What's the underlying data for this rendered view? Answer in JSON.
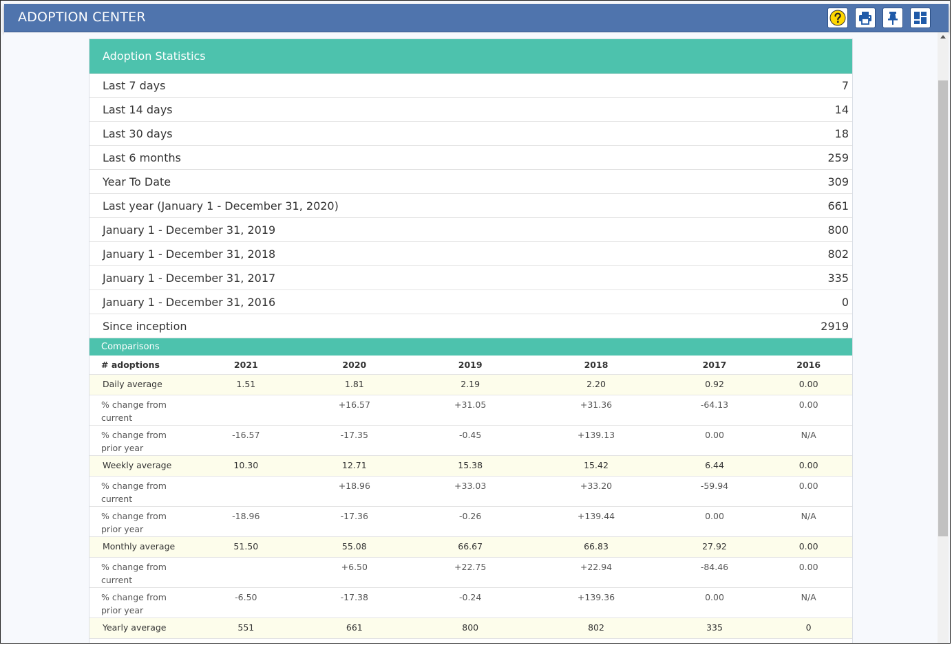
{
  "app": {
    "title": "ADOPTION CENTER"
  },
  "toolbar": {
    "icons": [
      "help-icon",
      "print-icon",
      "pin-icon",
      "dashboard-layout-icon"
    ],
    "accent": "#4f74ad",
    "help_color": "#ffd700"
  },
  "panel": {
    "title": "Adoption Statistics",
    "accent": "#4dc2ad",
    "stats": [
      {
        "label": "Last 7 days",
        "value": "7"
      },
      {
        "label": "Last 14 days",
        "value": "14"
      },
      {
        "label": "Last 30 days",
        "value": "18"
      },
      {
        "label": "Last 6 months",
        "value": "259"
      },
      {
        "label": "Year To Date",
        "value": "309"
      },
      {
        "label": "Last year (January 1 - December 31, 2020)",
        "value": "661"
      },
      {
        "label": "January 1 - December 31, 2019",
        "value": "800"
      },
      {
        "label": "January 1 - December 31, 2018",
        "value": "802"
      },
      {
        "label": "January 1 - December 31, 2017",
        "value": "335"
      },
      {
        "label": "January 1 - December 31, 2016",
        "value": "0"
      },
      {
        "label": "Since inception",
        "value": "2919"
      }
    ]
  },
  "comparisons": {
    "title": "Comparisons",
    "headers": [
      "# adoptions",
      "2021",
      "2020",
      "2019",
      "2018",
      "2017",
      "2016"
    ],
    "rows": [
      {
        "type": "avg",
        "label": "Daily average",
        "values": [
          "1.51",
          "1.81",
          "2.19",
          "2.20",
          "0.92",
          "0.00"
        ]
      },
      {
        "type": "chg",
        "label": "% change from current",
        "values": [
          "",
          "+16.57",
          "+31.05",
          "+31.36",
          "-64.13",
          "0.00"
        ]
      },
      {
        "type": "chg",
        "label": "% change from prior year",
        "values": [
          "-16.57",
          "-17.35",
          "-0.45",
          "+139.13",
          "0.00",
          "N/A"
        ]
      },
      {
        "type": "avg",
        "label": "Weekly average",
        "values": [
          "10.30",
          "12.71",
          "15.38",
          "15.42",
          "6.44",
          "0.00"
        ]
      },
      {
        "type": "chg",
        "label": "% change from current",
        "values": [
          "",
          "+18.96",
          "+33.03",
          "+33.20",
          "-59.94",
          "0.00"
        ]
      },
      {
        "type": "chg",
        "label": "% change from prior year",
        "values": [
          "-18.96",
          "-17.36",
          "-0.26",
          "+139.44",
          "0.00",
          "N/A"
        ]
      },
      {
        "type": "avg",
        "label": "Monthly average",
        "values": [
          "51.50",
          "55.08",
          "66.67",
          "66.83",
          "27.92",
          "0.00"
        ]
      },
      {
        "type": "chg",
        "label": "% change from current",
        "values": [
          "",
          "+6.50",
          "+22.75",
          "+22.94",
          "-84.46",
          "0.00"
        ]
      },
      {
        "type": "chg",
        "label": "% change from prior year",
        "values": [
          "-6.50",
          "-17.38",
          "-0.24",
          "+139.36",
          "0.00",
          "N/A"
        ]
      },
      {
        "type": "avg",
        "label": "Yearly average",
        "values": [
          "551",
          "661",
          "800",
          "802",
          "335",
          "0"
        ]
      }
    ]
  }
}
